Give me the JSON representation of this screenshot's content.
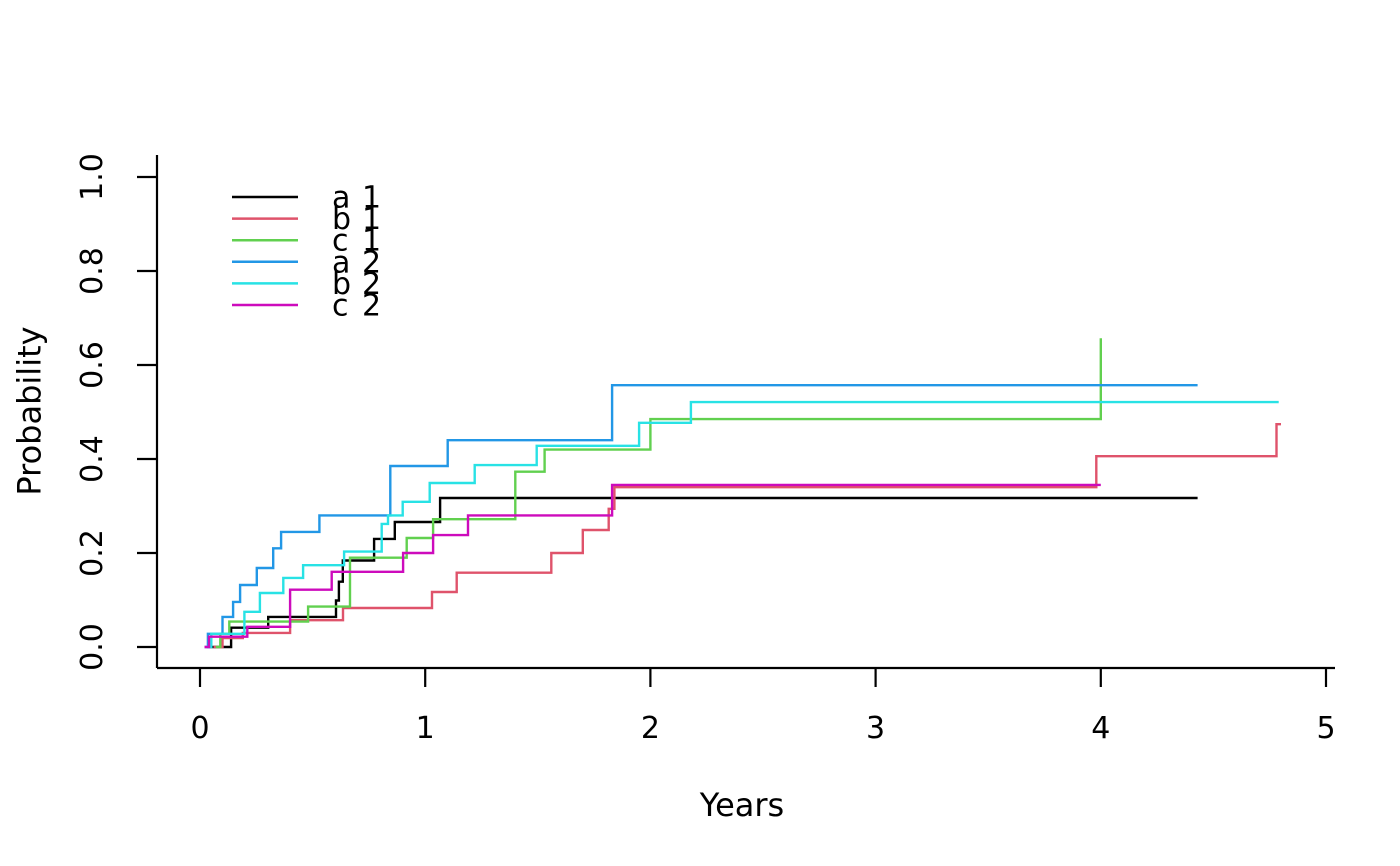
{
  "chart_data": {
    "type": "line",
    "subtype": "step-cumulative-incidence",
    "title": "",
    "xlabel": "Years",
    "ylabel": "Probability",
    "xlim": [
      0,
      5
    ],
    "ylim": [
      0.0,
      1.0
    ],
    "grid": false,
    "legend_position": "top-left",
    "axis_color": "#000000",
    "x_ticks": {
      "values": [
        0,
        1,
        2,
        3,
        4,
        5
      ],
      "labels": [
        "0",
        "1",
        "2",
        "3",
        "4",
        "5"
      ]
    },
    "y_ticks": {
      "values": [
        0.0,
        0.2,
        0.4,
        0.6,
        0.8,
        1.0
      ],
      "labels": [
        "0.0",
        "0.2",
        "0.4",
        "0.6",
        "0.8",
        "1.0"
      ]
    },
    "series": [
      {
        "name": "a 1",
        "color": "#000000",
        "end_year": 4.43,
        "points": [
          [
            0.03,
            0
          ],
          [
            0.138,
            0.041
          ],
          [
            0.303,
            0.064
          ],
          [
            0.604,
            0.099
          ],
          [
            0.617,
            0.139
          ],
          [
            0.634,
            0.184
          ],
          [
            0.773,
            0.23
          ],
          [
            0.865,
            0.266
          ],
          [
            1.066,
            0.317
          ]
        ]
      },
      {
        "name": "b 1",
        "color": "#DF536B",
        "end_year": 4.8,
        "points": [
          [
            0.06,
            0
          ],
          [
            0.1,
            0.019
          ],
          [
            0.19,
            0.03
          ],
          [
            0.4,
            0.057
          ],
          [
            0.635,
            0.083
          ],
          [
            1.03,
            0.117
          ],
          [
            1.14,
            0.158
          ],
          [
            1.56,
            0.2
          ],
          [
            1.7,
            0.249
          ],
          [
            1.815,
            0.294
          ],
          [
            1.84,
            0.34
          ],
          [
            3.98,
            0.406
          ],
          [
            4.78,
            0.474
          ]
        ]
      },
      {
        "name": "c 1",
        "color": "#61D04F",
        "end_year": 4.0,
        "points": [
          [
            0.07,
            0
          ],
          [
            0.09,
            0.028
          ],
          [
            0.13,
            0.054
          ],
          [
            0.48,
            0.086
          ],
          [
            0.666,
            0.19
          ],
          [
            0.918,
            0.232
          ],
          [
            1.035,
            0.272
          ],
          [
            1.4,
            0.373
          ],
          [
            1.53,
            0.42
          ],
          [
            2.0,
            0.485
          ],
          [
            4.0,
            0.657
          ]
        ]
      },
      {
        "name": "a 2",
        "color": "#2297E6",
        "end_year": 4.43,
        "points": [
          [
            0.02,
            0
          ],
          [
            0.035,
            0.028
          ],
          [
            0.1,
            0.064
          ],
          [
            0.147,
            0.096
          ],
          [
            0.178,
            0.132
          ],
          [
            0.252,
            0.168
          ],
          [
            0.325,
            0.21
          ],
          [
            0.36,
            0.245
          ],
          [
            0.53,
            0.28
          ],
          [
            0.845,
            0.385
          ],
          [
            1.1,
            0.44
          ],
          [
            1.83,
            0.557
          ]
        ]
      },
      {
        "name": "b 2",
        "color": "#28E2E5",
        "end_year": 4.79,
        "points": [
          [
            0.03,
            0
          ],
          [
            0.05,
            0.028
          ],
          [
            0.197,
            0.075
          ],
          [
            0.266,
            0.115
          ],
          [
            0.37,
            0.147
          ],
          [
            0.458,
            0.174
          ],
          [
            0.64,
            0.203
          ],
          [
            0.807,
            0.262
          ],
          [
            0.835,
            0.28
          ],
          [
            0.9,
            0.309
          ],
          [
            1.02,
            0.349
          ],
          [
            1.22,
            0.387
          ],
          [
            1.495,
            0.428
          ],
          [
            1.95,
            0.477
          ],
          [
            2.18,
            0.521
          ]
        ]
      },
      {
        "name": "c 2",
        "color": "#CD0BBC",
        "end_year": 4.0,
        "points": [
          [
            0.02,
            0
          ],
          [
            0.04,
            0.022
          ],
          [
            0.21,
            0.043
          ],
          [
            0.4,
            0.122
          ],
          [
            0.585,
            0.16
          ],
          [
            0.902,
            0.2
          ],
          [
            1.035,
            0.238
          ],
          [
            1.19,
            0.28
          ],
          [
            1.83,
            0.345
          ]
        ]
      }
    ]
  }
}
